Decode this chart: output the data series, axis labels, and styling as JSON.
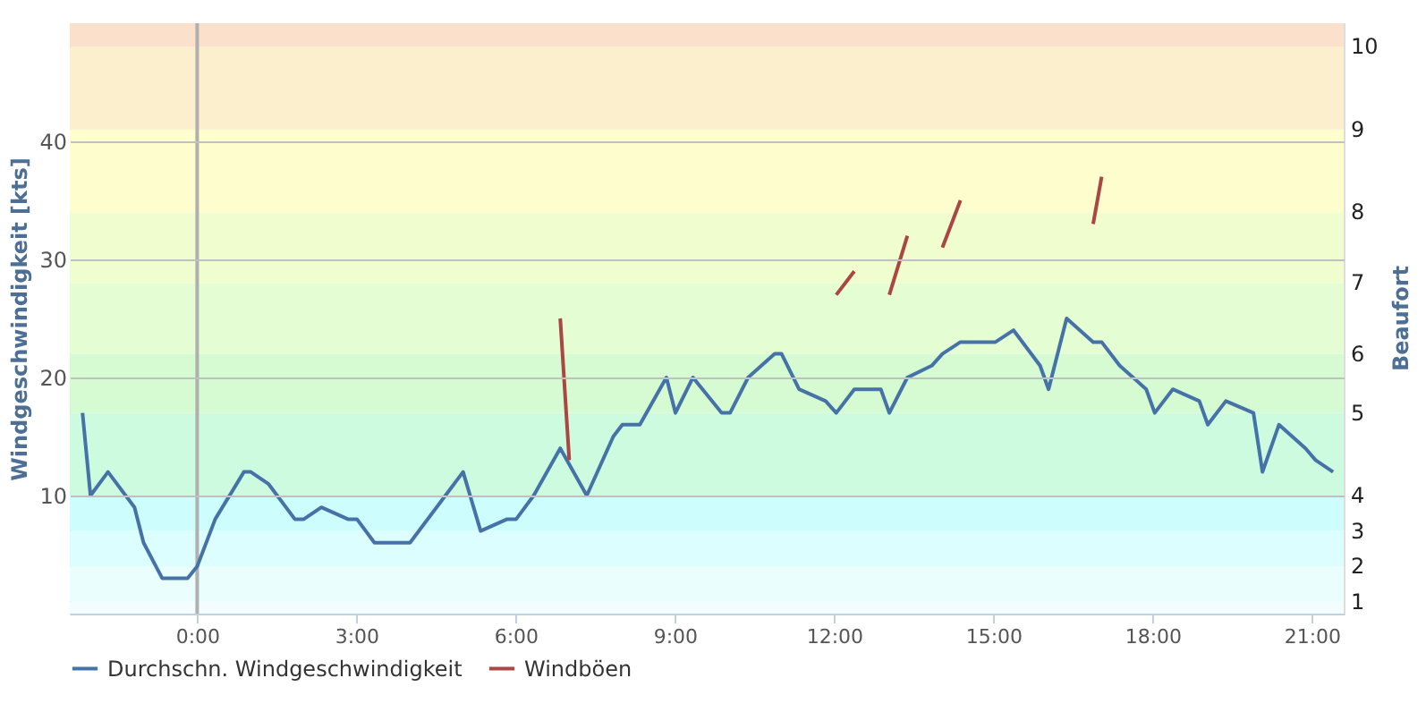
{
  "chart_data": {
    "type": "line",
    "ylabel": "Windgeschwindigkeit [kts]",
    "y2label": "Beaufort",
    "xlim": [
      -2.4,
      21.6
    ],
    "xticks": [
      {
        "value": 0,
        "label": "0:00"
      },
      {
        "value": 3,
        "label": "3:00"
      },
      {
        "value": 6,
        "label": "6:00"
      },
      {
        "value": 9,
        "label": "9:00"
      },
      {
        "value": 12,
        "label": "12:00"
      },
      {
        "value": 15,
        "label": "15:00"
      },
      {
        "value": 18,
        "label": "18:00"
      },
      {
        "value": 21,
        "label": "21:00"
      }
    ],
    "ylim": [
      0,
      50
    ],
    "yticks": [
      10,
      20,
      30,
      40
    ],
    "grid": "y",
    "legend": "bottom",
    "marker": "none",
    "line_style": "solid",
    "series": [
      {
        "name": "Durchschn. Windgeschwindigkeit",
        "color": "#4572a7",
        "x": [
          -2.16,
          -2.01,
          -1.68,
          -1.18,
          -1.01,
          -0.66,
          -0.18,
          0,
          0.34,
          0.88,
          1.01,
          1.34,
          1.84,
          2.01,
          2.34,
          2.84,
          3.01,
          3.34,
          4.01,
          5.01,
          5.34,
          5.84,
          6.01,
          6.34,
          6.84,
          7.34,
          7.84,
          8.01,
          8.34,
          8.84,
          9.01,
          9.34,
          9.88,
          10.04,
          10.38,
          10.88,
          11.01,
          11.34,
          11.84,
          12.04,
          12.38,
          12.88,
          13.04,
          13.38,
          13.84,
          14.04,
          14.38,
          15.04,
          15.38,
          15.88,
          16.04,
          16.38,
          16.88,
          17.04,
          17.38,
          17.88,
          18.04,
          18.38,
          18.88,
          19.04,
          19.38,
          19.9,
          20.07,
          20.38,
          20.88,
          21.07,
          21.4
        ],
        "values": [
          17,
          10,
          12,
          9,
          6,
          3,
          3,
          4,
          8,
          12,
          12,
          11,
          8,
          8,
          9,
          8,
          8,
          6,
          6,
          12,
          7,
          8,
          8,
          10,
          14,
          10,
          15,
          16,
          16,
          20,
          17,
          20,
          17,
          17,
          20,
          22,
          22,
          19,
          18,
          17,
          19,
          19,
          17,
          20,
          21,
          22,
          23,
          23,
          24,
          21,
          19,
          25,
          23,
          23,
          21,
          19,
          17,
          19,
          18,
          16,
          18,
          17,
          12,
          16,
          14,
          13,
          12
        ]
      },
      {
        "name": "Windböen",
        "color": "#aa4643",
        "x": [
          6.84,
          7.01,
          9.5,
          12.04,
          12.38,
          12.7,
          13.04,
          13.38,
          13.7,
          14.04,
          14.38,
          15.5,
          16.88,
          17.04
        ],
        "values": [
          25,
          13,
          null,
          27,
          29,
          null,
          27,
          32,
          null,
          31,
          35,
          null,
          33,
          37
        ]
      }
    ],
    "ref_lines": [
      {
        "axis": "x",
        "value": 0,
        "color": "#b0b0b0"
      }
    ],
    "bands": [
      {
        "axis": "y",
        "from": 0,
        "to": 1,
        "color": "#f3fdff"
      },
      {
        "axis": "y",
        "from": 1,
        "to": 4,
        "color": "#eafefe",
        "label": "1"
      },
      {
        "axis": "y",
        "from": 4,
        "to": 7,
        "color": "#dcfefe",
        "label": "2"
      },
      {
        "axis": "y",
        "from": 7,
        "to": 10,
        "color": "#cdfefd",
        "label": "3"
      },
      {
        "axis": "y",
        "from": 10,
        "to": 17,
        "color": "#cdfbe0",
        "label": "4"
      },
      {
        "axis": "y",
        "from": 17,
        "to": 22,
        "color": "#d6fbd2",
        "label": "5"
      },
      {
        "axis": "y",
        "from": 22,
        "to": 28,
        "color": "#e4fdd2",
        "label": "6"
      },
      {
        "axis": "y",
        "from": 28,
        "to": 34,
        "color": "#f0fdcf",
        "label": "7"
      },
      {
        "axis": "y",
        "from": 34,
        "to": 41,
        "color": "#fdfdcd",
        "label": "8"
      },
      {
        "axis": "y",
        "from": 41,
        "to": 48,
        "color": "#fcefcd",
        "label": "9"
      },
      {
        "axis": "y",
        "from": 48,
        "to": 50,
        "color": "#fbe0cc",
        "label": "10"
      }
    ]
  }
}
